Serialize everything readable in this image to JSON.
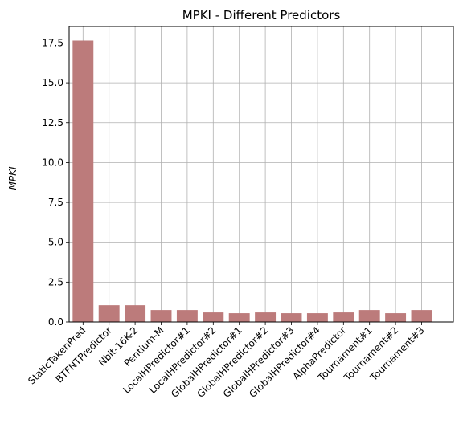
{
  "chart_data": {
    "type": "bar",
    "title": "MPKI - Different Predictors",
    "xlabel": "",
    "ylabel": "MPKI",
    "categories": [
      "StaticTakenPred",
      "BTFNTPredictor",
      "Nbit-16K-2",
      "Pentium-M",
      "LocalHPredictor#1",
      "LocalHPredictor#2",
      "GlobalHPredictor#1",
      "GlobalHPredictor#2",
      "GlobalHPredictor#3",
      "GlobalHPredictor#4",
      "AlphaPredictor",
      "Tournament#1",
      "Tournament#2",
      "Tournament#3"
    ],
    "values": [
      17.65,
      1.05,
      1.05,
      0.75,
      0.75,
      0.6,
      0.55,
      0.6,
      0.55,
      0.55,
      0.6,
      0.75,
      0.55,
      0.75
    ],
    "ylim": [
      0,
      18.53
    ],
    "yticks": [
      "0.0",
      "2.5",
      "5.0",
      "7.5",
      "10.0",
      "12.5",
      "15.0",
      "17.5"
    ],
    "grid": true,
    "bar_color": "#bc7b7b",
    "grid_color": "#b0b0b0"
  }
}
